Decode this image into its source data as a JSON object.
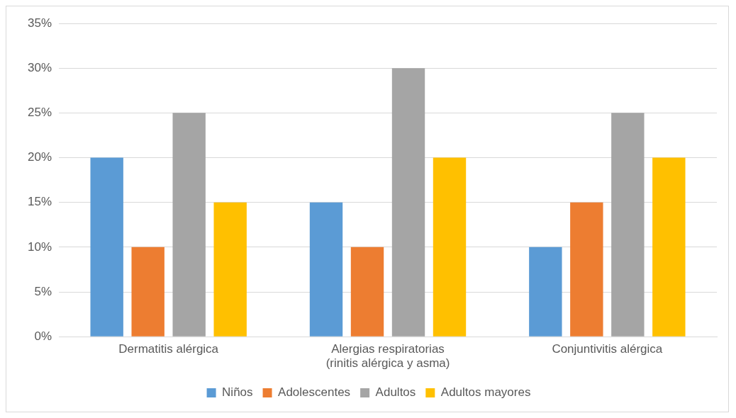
{
  "chart_data": {
    "type": "bar",
    "categories": [
      "Dermatitis alérgica",
      "Alergias respiratorias (rinitis alérgica y asma)",
      "Conjuntivitis alérgica"
    ],
    "series": [
      {
        "name": "Niños",
        "color": "#5b9bd5",
        "values": [
          20,
          15,
          10
        ]
      },
      {
        "name": "Adolescentes",
        "color": "#ed7d31",
        "values": [
          10,
          10,
          15
        ]
      },
      {
        "name": "Adultos",
        "color": "#a5a5a5",
        "values": [
          25,
          30,
          25
        ]
      },
      {
        "name": "Adultos mayores",
        "color": "#ffc000",
        "values": [
          15,
          20,
          20
        ]
      }
    ],
    "ylim": [
      0,
      35
    ],
    "yticks": [
      {
        "value": 0,
        "label": "0%"
      },
      {
        "value": 5,
        "label": "5%"
      },
      {
        "value": 10,
        "label": "10%"
      },
      {
        "value": 15,
        "label": "15%"
      },
      {
        "value": 20,
        "label": "20%"
      },
      {
        "value": 25,
        "label": "25%"
      },
      {
        "value": 30,
        "label": "30%"
      },
      {
        "value": 35,
        "label": "35%"
      }
    ],
    "grid": "y",
    "legend": "bottom"
  }
}
